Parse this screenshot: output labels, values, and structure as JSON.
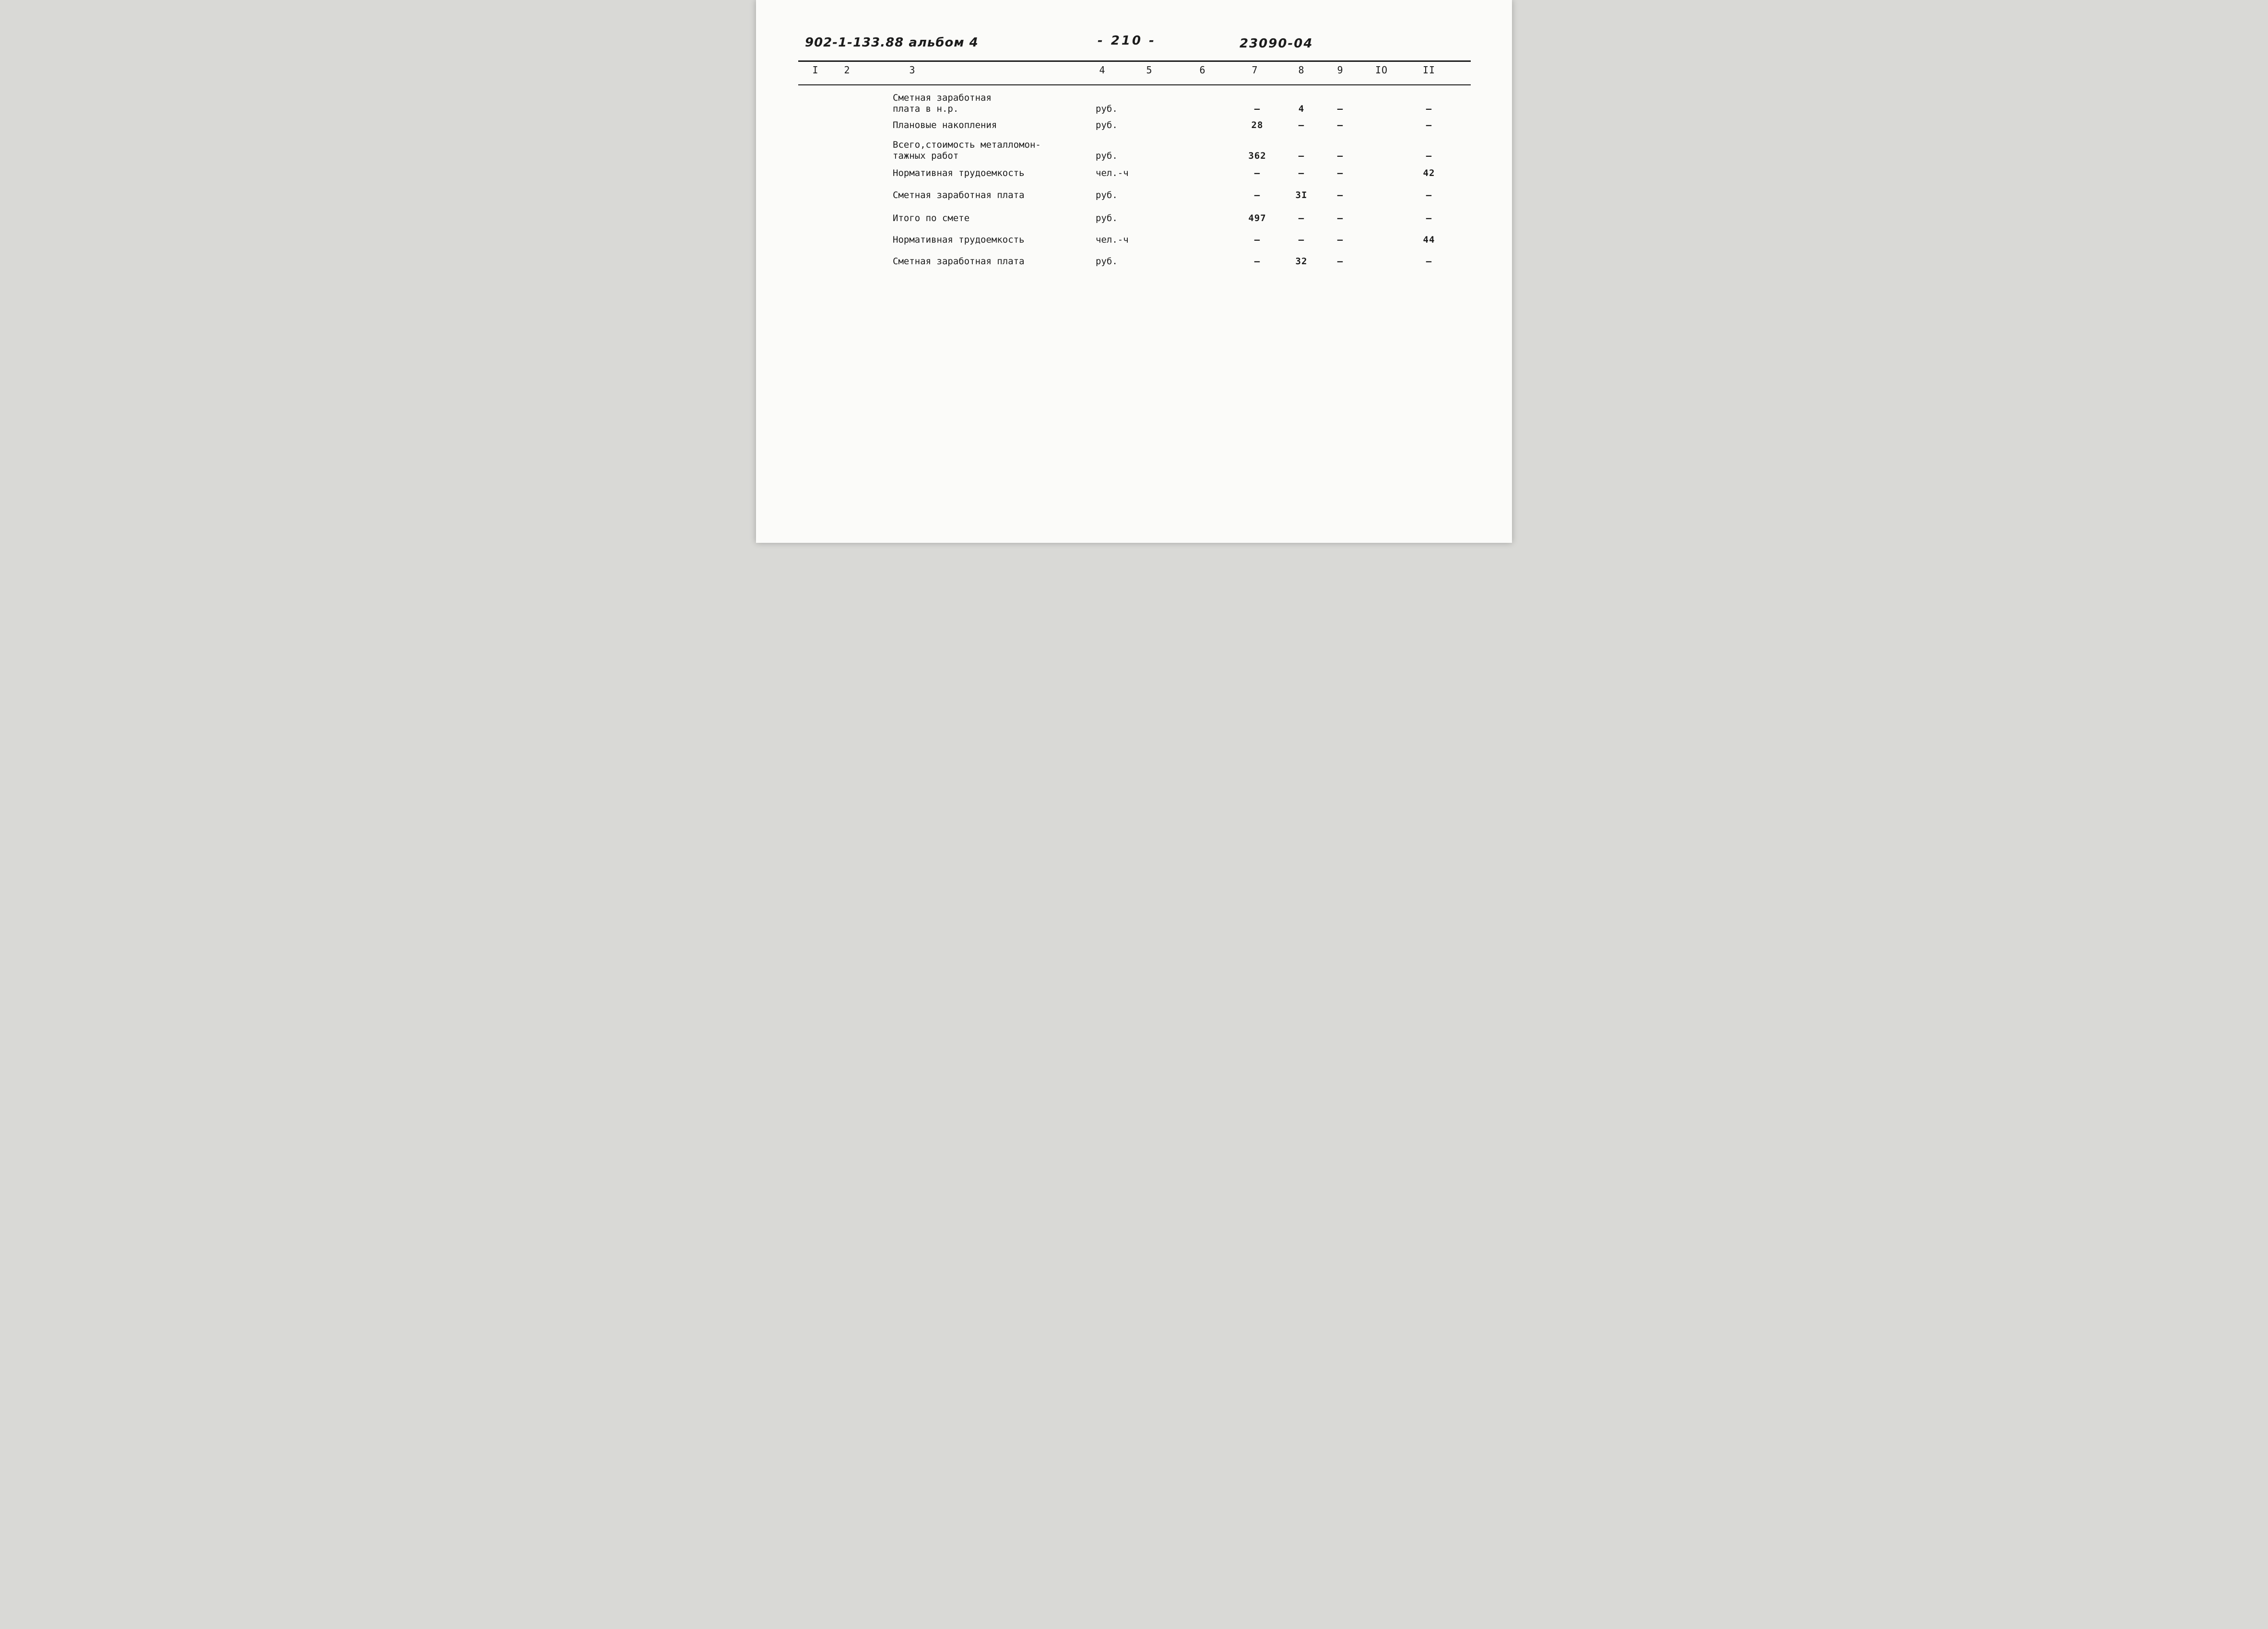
{
  "header": {
    "doc_number": "902-1-133.88 альбом 4",
    "page_number": "- 210 -",
    "code": "23090-04"
  },
  "table": {
    "columns": [
      "I",
      "2",
      "3",
      "4",
      "5",
      "6",
      "7",
      "8",
      "9",
      "IO",
      "II"
    ],
    "rows": [
      {
        "name": "Сметная заработная\nплата  в н.р.",
        "unit": "руб.",
        "c7": "–",
        "c8": "4",
        "c9": "–",
        "c11": "–"
      },
      {
        "name": "Плановые накопления",
        "unit": "руб.",
        "c7": "28",
        "c8": "–",
        "c9": "–",
        "c11": "–"
      },
      {
        "name": "Всего,стоимость металломон-\nтажных работ",
        "unit": "руб.",
        "c7": "362",
        "c8": "–",
        "c9": "–",
        "c11": "–"
      },
      {
        "name": "Нормативная трудоемкость",
        "unit": "чел.-ч",
        "c7": "–",
        "c8": "–",
        "c9": "–",
        "c11": "42"
      },
      {
        "name": "Сметная заработная плата",
        "unit": "руб.",
        "c7": "–",
        "c8": "3I",
        "c9": "–",
        "c11": "–"
      },
      {
        "name": "Итого по смете",
        "unit": "руб.",
        "c7": "497",
        "c8": "–",
        "c9": "–",
        "c11": "–"
      },
      {
        "name": "Нормативная трудоемкость",
        "unit": "чел.-ч",
        "c7": "–",
        "c8": "–",
        "c9": "–",
        "c11": "44"
      },
      {
        "name": "Сметная заработная плата",
        "unit": "руб.",
        "c7": "–",
        "c8": "32",
        "c9": "–",
        "c11": "–"
      }
    ]
  }
}
